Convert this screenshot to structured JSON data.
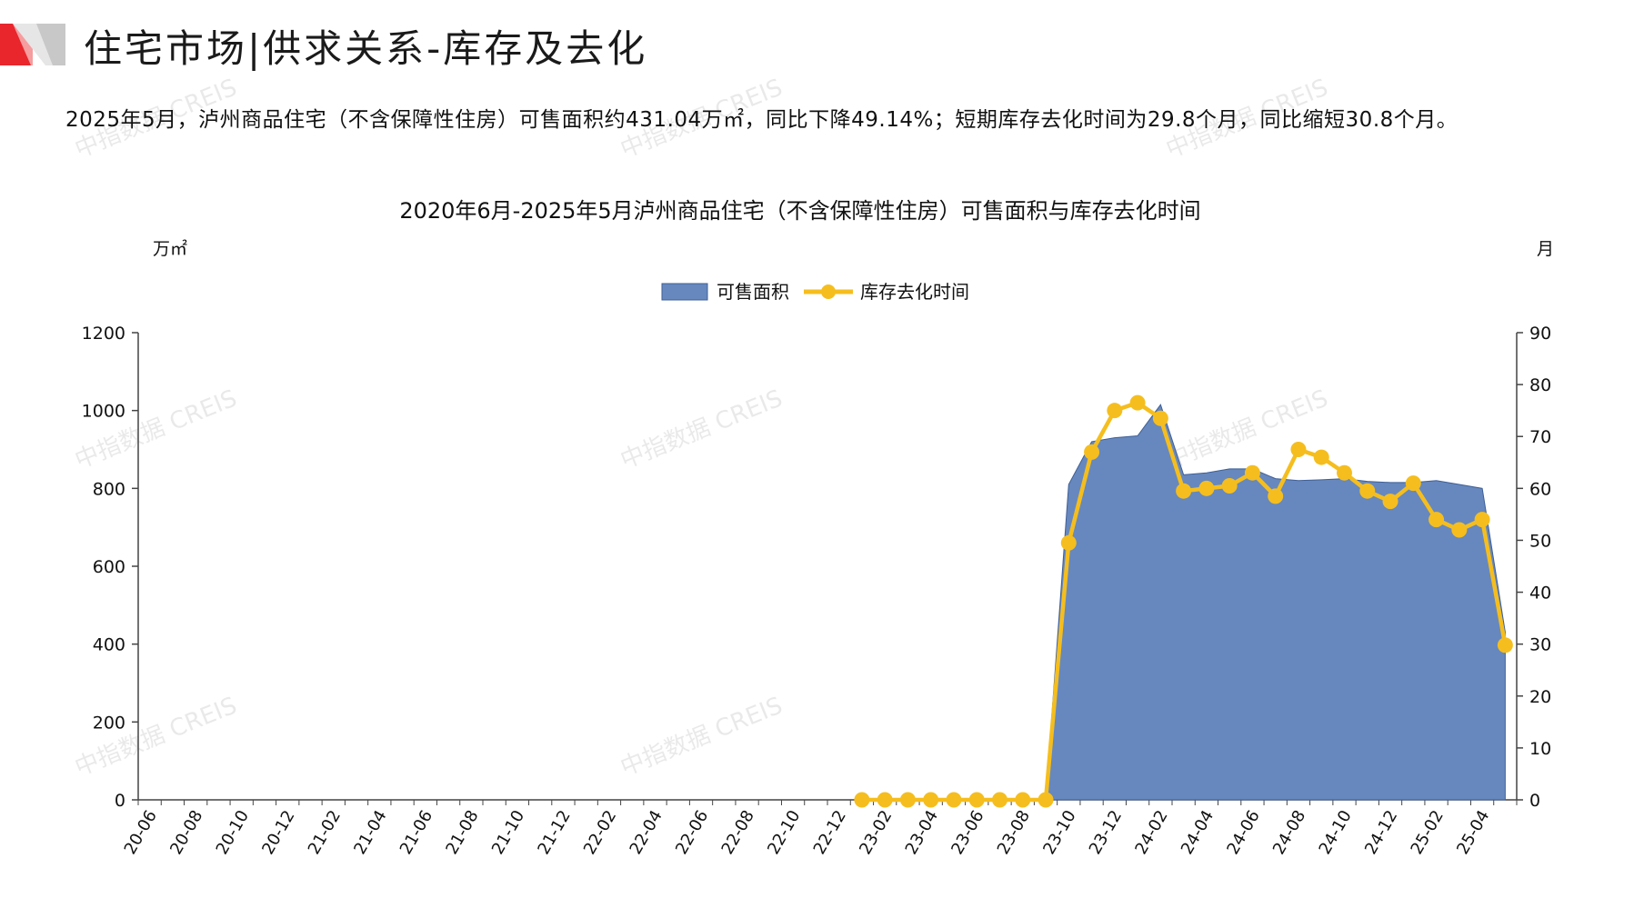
{
  "header": {
    "title": "住宅市场|供求关系-库存及去化",
    "colors": {
      "logo_red": "#e8262c",
      "logo_gray": "#c8c8c8"
    }
  },
  "summary": "2025年5月，泸州商品住宅（不含保障性住房）可售面积约431.04万㎡，同比下降49.14%；短期库存去化时间为29.8个月，同比缩短30.8个月。",
  "watermark": "中指数据 CREIS",
  "chart_data": {
    "type": "area+line",
    "title": "2020年6月-2025年5月泸州商品住宅（不含保障性住房）可售面积与库存去化时间",
    "left_unit": "万㎡",
    "right_unit": "月",
    "y_left": {
      "min": 0,
      "max": 1200,
      "ticks": [
        0,
        200,
        400,
        600,
        800,
        1000,
        1200
      ]
    },
    "y_right": {
      "min": 0,
      "max": 90,
      "ticks": [
        0,
        10,
        20,
        30,
        40,
        50,
        60,
        70,
        80,
        90
      ]
    },
    "x_tick_labels": [
      "20-06",
      "20-08",
      "20-10",
      "20-12",
      "21-02",
      "21-04",
      "21-06",
      "21-08",
      "21-10",
      "21-12",
      "22-02",
      "22-04",
      "22-06",
      "22-08",
      "22-10",
      "22-12",
      "23-02",
      "23-04",
      "23-06",
      "23-08",
      "23-10",
      "23-12",
      "24-02",
      "24-04",
      "24-06",
      "24-08",
      "24-10",
      "24-12",
      "25-02",
      "25-04"
    ],
    "months": [
      "20-06",
      "20-07",
      "20-08",
      "20-09",
      "20-10",
      "20-11",
      "20-12",
      "21-01",
      "21-02",
      "21-03",
      "21-04",
      "21-05",
      "21-06",
      "21-07",
      "21-08",
      "21-09",
      "21-10",
      "21-11",
      "21-12",
      "22-01",
      "22-02",
      "22-03",
      "22-04",
      "22-05",
      "22-06",
      "22-07",
      "22-08",
      "22-09",
      "22-10",
      "22-11",
      "22-12",
      "23-01",
      "23-02",
      "23-03",
      "23-04",
      "23-05",
      "23-06",
      "23-07",
      "23-08",
      "23-09",
      "23-10",
      "23-11",
      "23-12",
      "24-01",
      "24-02",
      "24-03",
      "24-04",
      "24-05",
      "24-06",
      "24-07",
      "24-08",
      "24-09",
      "24-10",
      "24-11",
      "24-12",
      "25-01",
      "25-02",
      "25-03",
      "25-04",
      "25-05"
    ],
    "legend": {
      "position": "top",
      "area_label": "可售面积",
      "line_label": "库存去化时间"
    },
    "colors": {
      "area": "#6688be",
      "area_stroke": "#3f5f96",
      "line": "#f5be1e",
      "axis": "#444444"
    },
    "series": [
      {
        "name": "可售面积",
        "axis": "left",
        "kind": "area",
        "values": [
          null,
          null,
          null,
          null,
          null,
          null,
          null,
          null,
          null,
          null,
          null,
          null,
          null,
          null,
          null,
          null,
          null,
          null,
          null,
          null,
          null,
          null,
          null,
          null,
          null,
          null,
          null,
          null,
          null,
          null,
          null,
          null,
          null,
          null,
          null,
          null,
          null,
          null,
          null,
          null,
          810,
          920,
          930,
          935,
          1015,
          835,
          840,
          850,
          850,
          825,
          820,
          822,
          825,
          818,
          815,
          815,
          820,
          810,
          800,
          431.04
        ]
      },
      {
        "name": "库存去化时间",
        "axis": "right",
        "kind": "line",
        "values": [
          null,
          null,
          null,
          null,
          null,
          null,
          null,
          null,
          null,
          null,
          null,
          null,
          null,
          null,
          null,
          null,
          null,
          null,
          null,
          null,
          null,
          null,
          null,
          null,
          null,
          null,
          null,
          null,
          null,
          null,
          null,
          0,
          0,
          0,
          0,
          0,
          0,
          0,
          0,
          0,
          49.5,
          67,
          75,
          76.5,
          73.5,
          59.5,
          60,
          60.5,
          63,
          58.5,
          67.5,
          66,
          63,
          59.5,
          57.5,
          61,
          54,
          52,
          54,
          29.8
        ]
      }
    ]
  }
}
